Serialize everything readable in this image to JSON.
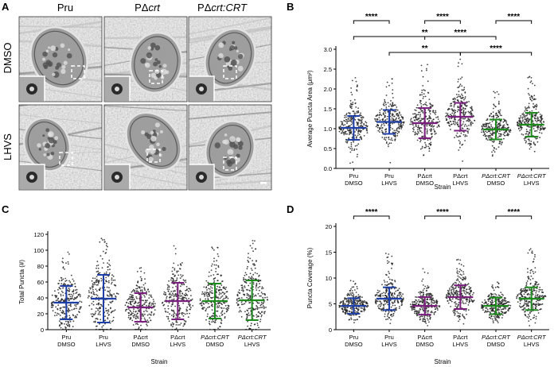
{
  "panels": {
    "A": {
      "label": "A",
      "columns": [
        {
          "text": "Pru"
        },
        {
          "prefix": "PΔ",
          "italic": "crt"
        },
        {
          "prefix": "PΔ",
          "italic": "crt:CRT"
        }
      ],
      "rows": [
        "DMSO",
        "LHVS"
      ]
    },
    "B": {
      "label": "B"
    },
    "C": {
      "label": "C"
    },
    "D": {
      "label": "D"
    }
  },
  "strain_groups": [
    {
      "strain": "Pru",
      "treatment": "DMSO",
      "italic": false,
      "color": "#1f3fa8"
    },
    {
      "strain": "Pru",
      "treatment": "LHVS",
      "italic": false,
      "color": "#1f3fa8"
    },
    {
      "strain": "PΔcrt",
      "treatment": "DMSO",
      "italic": false,
      "color": "#7a1f7d"
    },
    {
      "strain": "PΔcrt",
      "treatment": "LHVS",
      "italic": false,
      "color": "#7a1f7d"
    },
    {
      "strain": "PΔcrt:CRT",
      "treatment": "DMSO",
      "italic": true,
      "color": "#1e8a1e"
    },
    {
      "strain": "PΔcrt:CRT",
      "treatment": "LHVS",
      "italic": true,
      "color": "#1e8a1e"
    }
  ],
  "chart_data": [
    {
      "id": "B",
      "type": "scatter",
      "ylabel": "Average Puncta Area (μm²)",
      "xlabel": "Strain",
      "ylim": [
        0.0,
        3.0
      ],
      "yticks": [
        "0.0",
        "0.5",
        "1.0",
        "1.5",
        "2.0",
        "2.5",
        "3.0"
      ],
      "means": [
        1.02,
        1.17,
        1.14,
        1.3,
        0.98,
        1.1
      ],
      "sd": [
        0.3,
        0.3,
        0.38,
        0.35,
        0.25,
        0.3
      ],
      "n_points": 260,
      "outlier_max": [
        2.3,
        2.3,
        2.75,
        2.75,
        2.0,
        2.4
      ],
      "significance": [
        {
          "from": 0,
          "to": 1,
          "label": "****",
          "level": 0
        },
        {
          "from": 2,
          "to": 3,
          "label": "****",
          "level": 0
        },
        {
          "from": 4,
          "to": 5,
          "label": "****",
          "level": 0
        },
        {
          "from": 0,
          "to": 4,
          "label": "**",
          "level": 1
        },
        {
          "from": 2,
          "to": 4,
          "label": "****",
          "level": 1
        },
        {
          "from": 1,
          "to": 3,
          "label": "**",
          "level": 2
        },
        {
          "from": 3,
          "to": 5,
          "label": "****",
          "level": 2
        }
      ]
    },
    {
      "id": "C",
      "type": "scatter",
      "ylabel": "Total Puncta (#)",
      "xlabel": "Strain",
      "ylim": [
        0,
        120
      ],
      "yticks": [
        "0",
        "20",
        "40",
        "60",
        "80",
        "100",
        "120"
      ],
      "means": [
        34,
        39,
        28,
        36,
        36,
        37
      ],
      "sd": [
        21,
        30,
        18,
        23,
        22,
        25
      ],
      "n_points": 260,
      "outlier_max": [
        102,
        118,
        78,
        106,
        104,
        117
      ],
      "significance": []
    },
    {
      "id": "D",
      "type": "scatter",
      "ylabel": "Puncta Coverage (%)",
      "xlabel": "Strain",
      "ylim": [
        0,
        20
      ],
      "yticks": [
        "0",
        "5",
        "10",
        "15",
        "20"
      ],
      "means": [
        4.6,
        6.0,
        4.6,
        6.3,
        4.6,
        6.0
      ],
      "sd": [
        1.5,
        2.2,
        1.7,
        2.3,
        1.6,
        2.2
      ],
      "n_points": 260,
      "outlier_max": [
        9.5,
        16.0,
        12.3,
        14.2,
        9.5,
        15.8
      ],
      "significance": [
        {
          "from": 0,
          "to": 1,
          "label": "****",
          "level": 0
        },
        {
          "from": 2,
          "to": 3,
          "label": "****",
          "level": 0
        },
        {
          "from": 4,
          "to": 5,
          "label": "****",
          "level": 0
        }
      ]
    }
  ]
}
